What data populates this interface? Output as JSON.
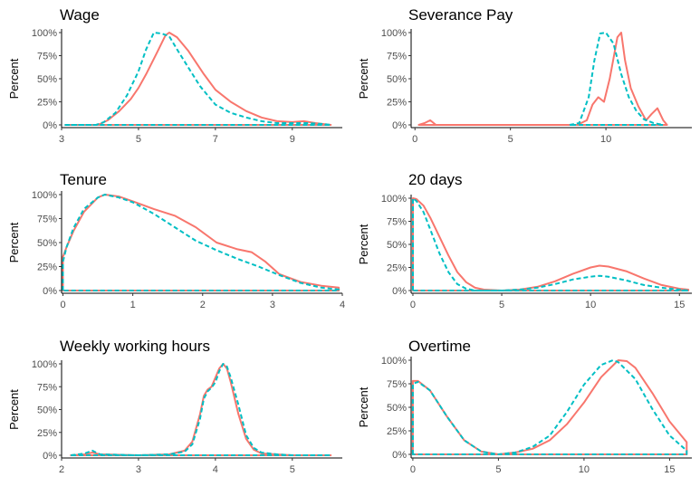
{
  "chart_data": [
    {
      "type": "line",
      "title": "Wage",
      "ylabel": "Percent",
      "xlabel": "",
      "xlim": [
        3,
        10.3
      ],
      "xticks": [
        3,
        5,
        7,
        9
      ],
      "ylim": [
        0,
        1
      ],
      "yticks": [
        0,
        0.25,
        0.5,
        0.75,
        1.0
      ],
      "ytick_labels": [
        "0%",
        "25%",
        "50%",
        "75%",
        "100%"
      ],
      "grid": false,
      "legend": "none",
      "series": [
        {
          "color": "#F8766D",
          "dash": "solid",
          "x": [
            3.1,
            3.9,
            4.0,
            4.2,
            4.5,
            4.8,
            5.0,
            5.2,
            5.5,
            5.7,
            5.8,
            6.0,
            6.3,
            6.7,
            7.0,
            7.4,
            7.8,
            8.2,
            8.6,
            9.0,
            9.3,
            9.6,
            10.0
          ],
          "y": [
            0,
            0,
            0.01,
            0.05,
            0.15,
            0.28,
            0.4,
            0.55,
            0.8,
            0.97,
            1.0,
            0.95,
            0.8,
            0.55,
            0.38,
            0.25,
            0.15,
            0.08,
            0.04,
            0.03,
            0.04,
            0.02,
            0
          ]
        },
        {
          "color": "#00BFC4",
          "dash": "dashed",
          "x": [
            3.1,
            3.9,
            4.1,
            4.4,
            4.7,
            5.0,
            5.2,
            5.4,
            5.6,
            5.8,
            6.0,
            6.3,
            6.6,
            7.0,
            7.4,
            7.8,
            8.2,
            8.6,
            9.0,
            9.4,
            9.8,
            10.0
          ],
          "y": [
            0,
            0,
            0.03,
            0.13,
            0.32,
            0.58,
            0.82,
            1.0,
            0.99,
            0.96,
            0.82,
            0.62,
            0.42,
            0.22,
            0.13,
            0.08,
            0.04,
            0.02,
            0.02,
            0.02,
            0.01,
            0
          ]
        }
      ]
    },
    {
      "type": "line",
      "title": "Severance Pay",
      "ylabel": "Percent",
      "xlabel": "",
      "xlim": [
        -0.2,
        14.5
      ],
      "xticks": [
        0,
        5,
        10
      ],
      "ylim": [
        0,
        1
      ],
      "yticks": [
        0,
        0.25,
        0.5,
        0.75,
        1.0
      ],
      "ytick_labels": [
        "0%",
        "25%",
        "50%",
        "75%",
        "100%"
      ],
      "grid": false,
      "legend": "none",
      "series": [
        {
          "color": "#F8766D",
          "dash": "solid",
          "x": [
            0.2,
            0.5,
            0.8,
            1.1,
            8.5,
            9.0,
            9.3,
            9.6,
            9.9,
            10.2,
            10.6,
            10.8,
            11.0,
            11.3,
            11.7,
            12.1,
            12.4,
            12.7,
            13.0,
            13.2
          ],
          "y": [
            0,
            0.02,
            0.05,
            0,
            0,
            0.05,
            0.22,
            0.3,
            0.25,
            0.5,
            0.95,
            1.0,
            0.7,
            0.4,
            0.2,
            0.05,
            0.12,
            0.18,
            0.05,
            0
          ]
        },
        {
          "color": "#00BFC4",
          "dash": "dashed",
          "x": [
            8.1,
            8.6,
            9.1,
            9.4,
            9.7,
            10.0,
            10.4,
            10.8,
            11.2,
            11.6,
            12.0,
            12.5,
            13.0
          ],
          "y": [
            0,
            0.02,
            0.3,
            0.7,
            0.99,
            1.0,
            0.88,
            0.55,
            0.3,
            0.15,
            0.06,
            0.02,
            0
          ]
        }
      ]
    },
    {
      "type": "line",
      "title": "Tenure",
      "ylabel": "Percent",
      "xlabel": "",
      "xlim": [
        -0.02,
        4.0
      ],
      "xticks": [
        0,
        1,
        2,
        3,
        4
      ],
      "ylim": [
        0,
        1
      ],
      "yticks": [
        0,
        0.25,
        0.5,
        0.75,
        1.0
      ],
      "ytick_labels": [
        "0%",
        "25%",
        "50%",
        "75%",
        "100%"
      ],
      "grid": false,
      "legend": "none",
      "series": [
        {
          "color": "#F8766D",
          "dash": "solid",
          "x": [
            0.0,
            0.05,
            0.15,
            0.3,
            0.5,
            0.6,
            0.8,
            1.0,
            1.3,
            1.6,
            1.9,
            2.2,
            2.5,
            2.7,
            2.9,
            3.1,
            3.4,
            3.7,
            3.95
          ],
          "y": [
            0.35,
            0.45,
            0.62,
            0.82,
            0.97,
            1.0,
            0.98,
            0.93,
            0.85,
            0.78,
            0.66,
            0.5,
            0.43,
            0.4,
            0.3,
            0.17,
            0.09,
            0.05,
            0.03
          ]
        },
        {
          "color": "#00BFC4",
          "dash": "dashed",
          "x": [
            0.0,
            0.05,
            0.15,
            0.3,
            0.5,
            0.6,
            0.8,
            1.0,
            1.3,
            1.6,
            1.9,
            2.2,
            2.5,
            2.8,
            3.1,
            3.4,
            3.7,
            3.95
          ],
          "y": [
            0.3,
            0.45,
            0.65,
            0.85,
            0.97,
            1.0,
            0.97,
            0.92,
            0.8,
            0.66,
            0.52,
            0.42,
            0.33,
            0.25,
            0.16,
            0.08,
            0.03,
            0.01
          ]
        }
      ]
    },
    {
      "type": "line",
      "title": "20 days",
      "ylabel": "Percent",
      "xlabel": "",
      "xlim": [
        -0.1,
        15.7
      ],
      "xticks": [
        0,
        5,
        10,
        15
      ],
      "ylim": [
        0,
        1
      ],
      "yticks": [
        0,
        0.25,
        0.5,
        0.75,
        1.0
      ],
      "ytick_labels": [
        "0%",
        "25%",
        "50%",
        "75%",
        "100%"
      ],
      "grid": false,
      "legend": "none",
      "series": [
        {
          "color": "#F8766D",
          "dash": "solid",
          "x": [
            0.0,
            0.2,
            0.6,
            1.0,
            1.5,
            2.0,
            2.5,
            3.0,
            3.5,
            4.0,
            5.0,
            6.0,
            7.0,
            8.0,
            9.0,
            10.0,
            10.5,
            11.0,
            12.0,
            13.0,
            14.0,
            15.0,
            15.5
          ],
          "y": [
            1.0,
            0.99,
            0.92,
            0.78,
            0.58,
            0.38,
            0.2,
            0.09,
            0.03,
            0.01,
            0.0,
            0.01,
            0.04,
            0.1,
            0.18,
            0.25,
            0.27,
            0.26,
            0.21,
            0.13,
            0.06,
            0.02,
            0.01
          ]
        },
        {
          "color": "#00BFC4",
          "dash": "dashed",
          "x": [
            0.0,
            0.2,
            0.6,
            1.0,
            1.5,
            2.0,
            2.5,
            3.0,
            3.5,
            4.0,
            5.0,
            6.0,
            7.0,
            8.0,
            9.0,
            10.0,
            10.5,
            11.0,
            12.0,
            13.0,
            14.0,
            15.0,
            15.5
          ],
          "y": [
            1.0,
            0.97,
            0.85,
            0.65,
            0.4,
            0.2,
            0.07,
            0.02,
            0.0,
            0.0,
            0.0,
            0.01,
            0.03,
            0.07,
            0.12,
            0.15,
            0.16,
            0.15,
            0.11,
            0.06,
            0.03,
            0.01,
            0.0
          ]
        }
      ]
    },
    {
      "type": "line",
      "title": "Weekly working hours",
      "ylabel": "Percent",
      "xlabel": "",
      "xlim": [
        2.0,
        5.65
      ],
      "xticks": [
        2,
        3,
        4,
        5
      ],
      "ylim": [
        0,
        1
      ],
      "yticks": [
        0,
        0.25,
        0.5,
        0.75,
        1.0
      ],
      "ytick_labels": [
        "0%",
        "25%",
        "50%",
        "75%",
        "100%"
      ],
      "grid": false,
      "legend": "none",
      "series": [
        {
          "color": "#F8766D",
          "dash": "solid",
          "x": [
            2.12,
            2.3,
            2.4,
            2.5,
            3.0,
            3.4,
            3.6,
            3.7,
            3.8,
            3.85,
            3.9,
            3.95,
            4.0,
            4.05,
            4.1,
            4.15,
            4.2,
            4.3,
            4.4,
            4.5,
            4.6,
            4.8,
            5.0,
            5.5
          ],
          "y": [
            0,
            0.01,
            0.03,
            0.01,
            0.0,
            0.01,
            0.05,
            0.15,
            0.45,
            0.65,
            0.72,
            0.75,
            0.85,
            0.95,
            1.0,
            0.95,
            0.8,
            0.45,
            0.18,
            0.06,
            0.02,
            0.01,
            0.0,
            0.0
          ]
        },
        {
          "color": "#00BFC4",
          "dash": "dashed",
          "x": [
            2.12,
            2.3,
            2.4,
            2.5,
            3.0,
            3.4,
            3.6,
            3.7,
            3.8,
            3.85,
            3.9,
            3.95,
            4.0,
            4.05,
            4.1,
            4.15,
            4.2,
            4.3,
            4.4,
            4.5,
            4.6,
            4.8,
            5.0,
            5.5
          ],
          "y": [
            0,
            0.02,
            0.05,
            0.01,
            0.0,
            0.01,
            0.04,
            0.12,
            0.4,
            0.62,
            0.7,
            0.74,
            0.8,
            0.92,
            1.0,
            0.97,
            0.85,
            0.55,
            0.22,
            0.08,
            0.03,
            0.01,
            0.0,
            0.0
          ]
        }
      ]
    },
    {
      "type": "line",
      "title": "Overtime",
      "ylabel": "Percent",
      "xlabel": "",
      "xlim": [
        -0.1,
        16.3
      ],
      "xticks": [
        0,
        5,
        10,
        15
      ],
      "ylim": [
        0,
        1
      ],
      "yticks": [
        0,
        0.25,
        0.5,
        0.75,
        1.0
      ],
      "ytick_labels": [
        "0%",
        "25%",
        "50%",
        "75%",
        "100%"
      ],
      "grid": false,
      "legend": "none",
      "series": [
        {
          "color": "#F8766D",
          "dash": "solid",
          "x": [
            0.0,
            0.3,
            1.0,
            2.0,
            3.0,
            4.0,
            5.0,
            6.0,
            7.0,
            8.0,
            9.0,
            10.0,
            11.0,
            12.0,
            12.5,
            13.0,
            14.0,
            15.0,
            16.0
          ],
          "y": [
            0.78,
            0.78,
            0.68,
            0.4,
            0.15,
            0.03,
            0.0,
            0.02,
            0.06,
            0.15,
            0.32,
            0.55,
            0.82,
            1.0,
            0.99,
            0.92,
            0.65,
            0.35,
            0.13
          ]
        },
        {
          "color": "#00BFC4",
          "dash": "dashed",
          "x": [
            0.0,
            0.3,
            1.0,
            2.0,
            3.0,
            4.0,
            5.0,
            6.0,
            7.0,
            8.0,
            9.0,
            10.0,
            11.0,
            11.7,
            12.0,
            13.0,
            14.0,
            15.0,
            16.0
          ],
          "y": [
            0.75,
            0.77,
            0.68,
            0.4,
            0.15,
            0.03,
            0.0,
            0.02,
            0.08,
            0.2,
            0.45,
            0.74,
            0.95,
            1.0,
            0.98,
            0.8,
            0.48,
            0.2,
            0.04
          ]
        }
      ]
    }
  ]
}
